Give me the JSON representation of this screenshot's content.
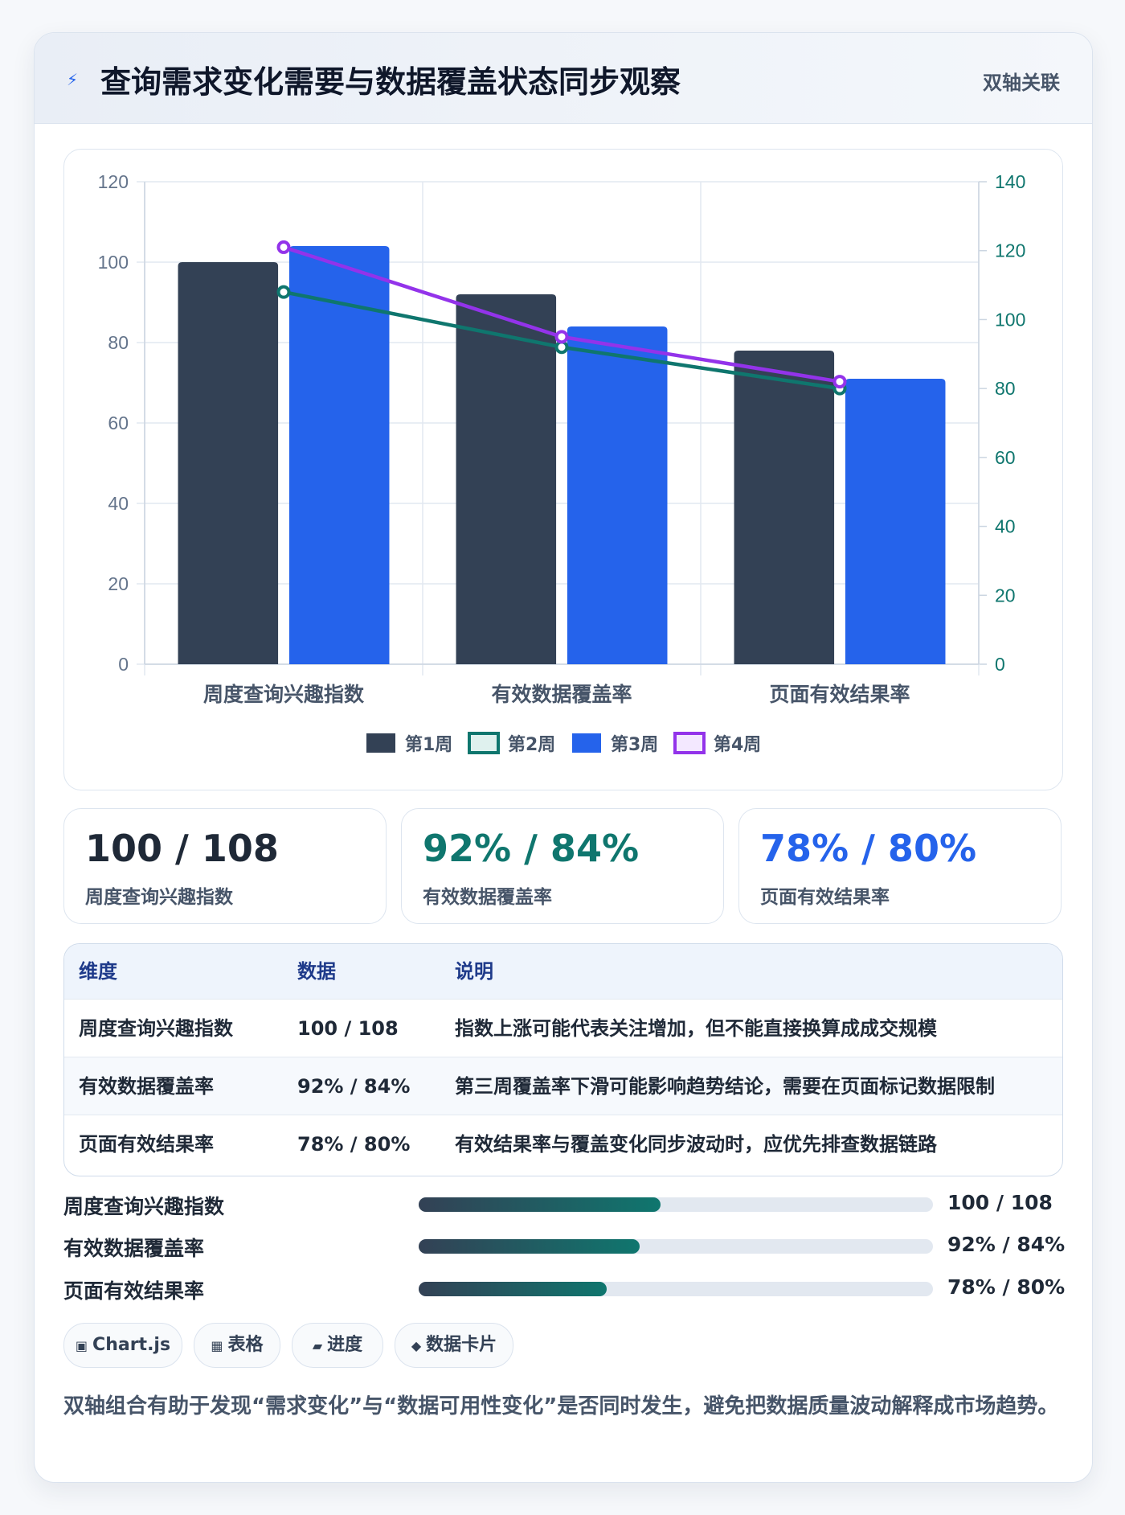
{
  "header": {
    "icon": "bolt-icon",
    "title": "查询需求变化需要与数据覆盖状态同步观察",
    "tag": "双轴关联"
  },
  "chart_data": {
    "type": "bar",
    "categories": [
      "周度查询兴趣指数",
      "有效数据覆盖率",
      "页面有效结果率"
    ],
    "series": [
      {
        "name": "第1周",
        "kind": "bar",
        "axis": "left",
        "color": "#334155",
        "values": [
          100,
          92,
          78
        ]
      },
      {
        "name": "第2周",
        "kind": "line",
        "axis": "right",
        "color": "#0f766e",
        "values": [
          108,
          92,
          80
        ]
      },
      {
        "name": "第3周",
        "kind": "bar",
        "axis": "left",
        "color": "#2563eb",
        "values": [
          104,
          84,
          71
        ]
      },
      {
        "name": "第4周",
        "kind": "line",
        "axis": "right",
        "color": "#9333ea",
        "values": [
          121,
          95,
          82
        ]
      }
    ],
    "y_left": {
      "min": 0,
      "max": 120,
      "ticks": [
        "0",
        "20",
        "40",
        "60",
        "80",
        "100",
        "120"
      ]
    },
    "y_right": {
      "min": 0,
      "max": 140,
      "ticks": [
        "0",
        "20",
        "40",
        "60",
        "80",
        "100",
        "120",
        "140"
      ]
    },
    "legend_position": "bottom-center",
    "grid": true
  },
  "kpis": [
    {
      "value": "100 / 108",
      "label": "周度查询兴趣指数",
      "color": "#1f2937"
    },
    {
      "value": "92% / 84%",
      "label": "有效数据覆盖率",
      "color": "#0f766e"
    },
    {
      "value": "78% / 80%",
      "label": "页面有效结果率",
      "color": "#2563eb"
    }
  ],
  "table": {
    "headers": [
      "维度",
      "数据",
      "说明"
    ],
    "rows": [
      [
        "周度查询兴趣指数",
        "100 / 108",
        "指数上涨可能代表关注增加，但不能直接换算成成交规模"
      ],
      [
        "有效数据覆盖率",
        "92% / 84%",
        "第三周覆盖率下滑可能影响趋势结论，需要在页面标记数据限制"
      ],
      [
        "页面有效结果率",
        "78% / 80%",
        "有效结果率与覆盖变化同步波动时，应优先排查数据链路"
      ]
    ]
  },
  "progress": [
    {
      "label": "周度查询兴趣指数",
      "value": "100 / 108",
      "fraction": 0.47
    },
    {
      "label": "有效数据覆盖率",
      "value": "92% / 84%",
      "fraction": 0.43
    },
    {
      "label": "页面有效结果率",
      "value": "78% / 80%",
      "fraction": 0.365
    }
  ],
  "chips": [
    {
      "icon": "▣",
      "label": "Chart.js"
    },
    {
      "icon": "▦",
      "label": "表格"
    },
    {
      "icon": "▰",
      "label": "进度"
    },
    {
      "icon": "◆",
      "label": "数据卡片"
    }
  ],
  "note": "双轴组合有助于发现“需求变化”与“数据可用性变化”是否同时发生，避免把数据质量波动解释成市场趋势。"
}
